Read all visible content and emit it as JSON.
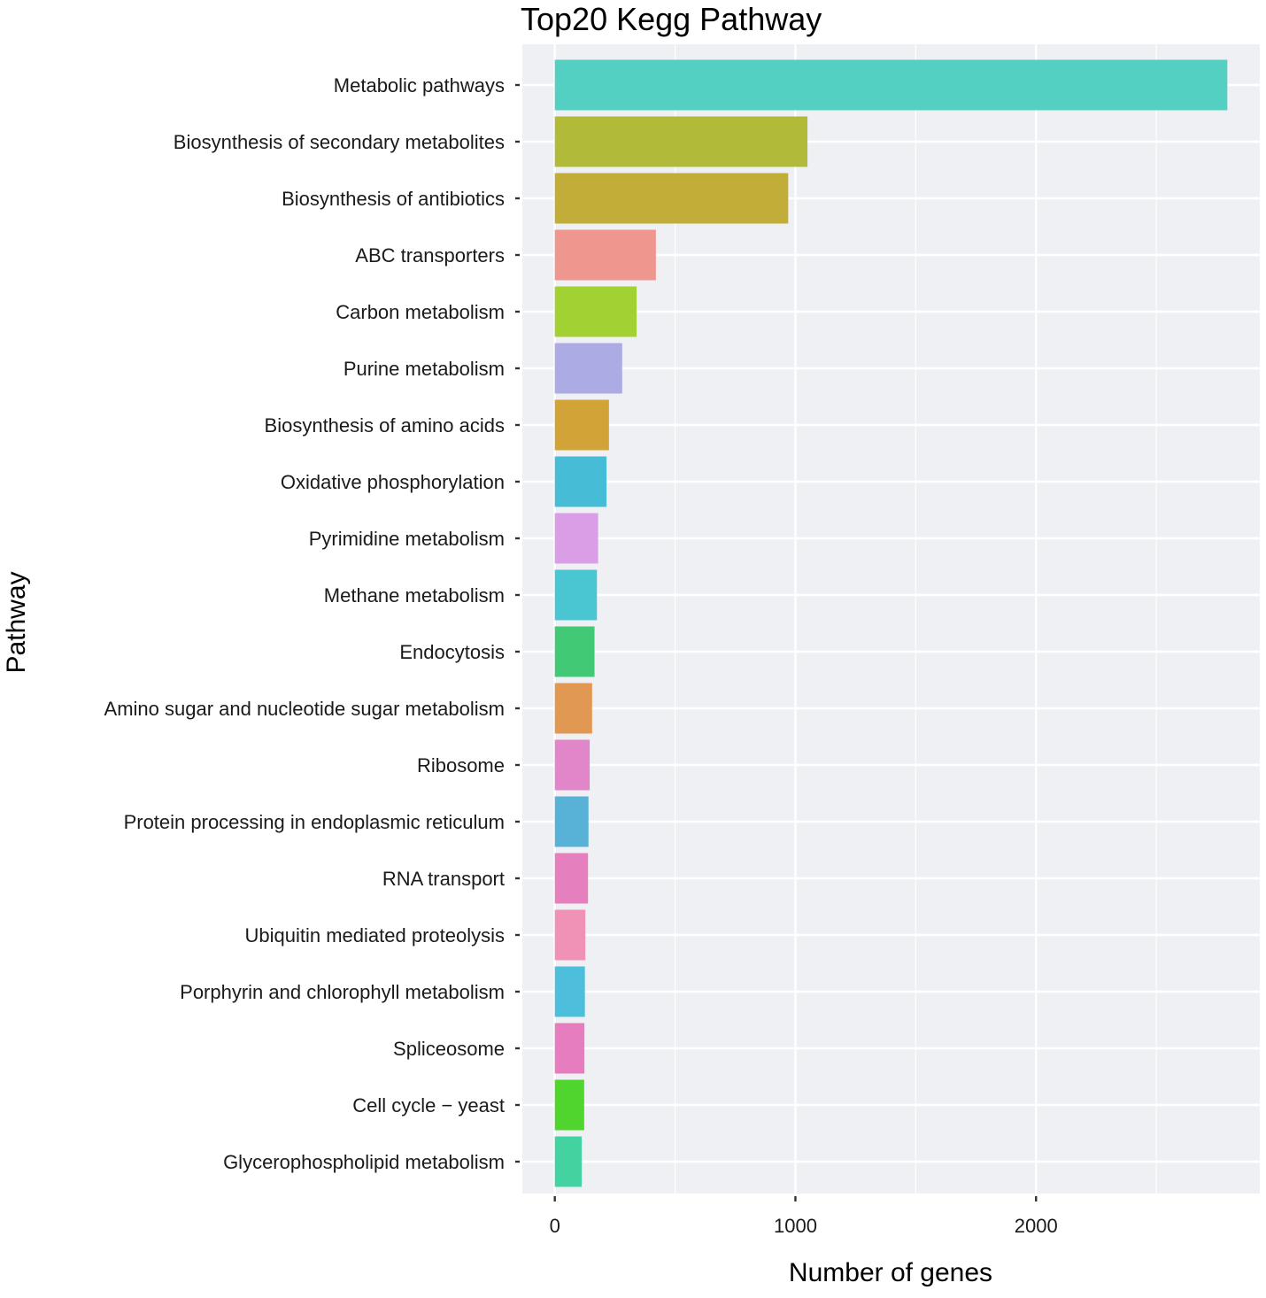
{
  "chart_data": {
    "type": "bar",
    "orientation": "horizontal",
    "title": "Top20 Kegg Pathway",
    "xlabel": "Number of genes",
    "ylabel": "Pathway",
    "xlim": [
      -135,
      2930
    ],
    "xticks": [
      0,
      1000,
      2000
    ],
    "xtick_labels": [
      "0",
      "1000",
      "2000"
    ],
    "x_minor_ticks": [
      500,
      1500,
      2500
    ],
    "grid": true,
    "background": "#eef0f4",
    "gridline_color": "#ffffff",
    "categories": [
      "Metabolic pathways",
      "Biosynthesis of secondary metabolites",
      "Biosynthesis of antibiotics",
      "ABC transporters",
      "Carbon metabolism",
      "Purine metabolism",
      "Biosynthesis of amino acids",
      "Oxidative phosphorylation",
      "Pyrimidine metabolism",
      "Methane metabolism",
      "Endocytosis",
      "Amino sugar and nucleotide sugar metabolism",
      "Ribosome",
      "Protein processing in endoplasmic reticulum",
      "RNA transport",
      "Ubiquitin mediated proteolysis",
      "Porphyrin and chlorophyll metabolism",
      "Spliceosome",
      "Cell cycle − yeast",
      "Glycerophospholipid metabolism"
    ],
    "values": [
      2795,
      1050,
      970,
      420,
      340,
      280,
      225,
      215,
      180,
      175,
      165,
      155,
      145,
      140,
      138,
      127,
      125,
      123,
      122,
      112
    ],
    "colors": [
      "#53d0c1",
      "#b2bb39",
      "#c1ad38",
      "#ef968f",
      "#a1d132",
      "#acabe4",
      "#d2a336",
      "#47bcd7",
      "#da9ee6",
      "#4ac6d2",
      "#41c975",
      "#e09853",
      "#e186c8",
      "#58b1d7",
      "#e57fbd",
      "#ef92b5",
      "#4dbedc",
      "#e57dbe",
      "#50d42e",
      "#43d3a0"
    ]
  }
}
